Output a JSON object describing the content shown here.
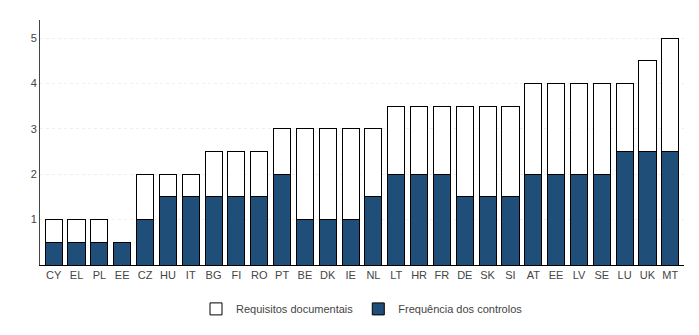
{
  "chart_data": {
    "type": "bar",
    "stacked": true,
    "categories": [
      "CY",
      "EL",
      "PL",
      "EE",
      "CZ",
      "HU",
      "IT",
      "BG",
      "FI",
      "RO",
      "PT",
      "BE",
      "DK",
      "IE",
      "NL",
      "LT",
      "HR",
      "FR",
      "DE",
      "SK",
      "SI",
      "AT",
      "EE",
      "LV",
      "SE",
      "LU",
      "UK",
      "MT"
    ],
    "series": [
      {
        "name": "Frequência dos controlos",
        "color": "#1F4E79",
        "values": [
          0.5,
          0.5,
          0.5,
          0.5,
          1.0,
          1.5,
          1.5,
          1.5,
          1.5,
          1.5,
          2.0,
          1.0,
          1.0,
          1.0,
          1.5,
          2.0,
          2.0,
          2.0,
          1.5,
          1.5,
          1.5,
          2.0,
          2.0,
          2.0,
          2.0,
          2.5,
          2.5,
          2.5
        ]
      },
      {
        "name": "Requisitos documentais",
        "color": "#FFFFFF",
        "values": [
          0.5,
          0.5,
          0.5,
          0.0,
          1.0,
          0.5,
          0.5,
          1.0,
          1.0,
          1.0,
          1.0,
          2.0,
          2.0,
          2.0,
          1.5,
          1.5,
          1.5,
          1.5,
          2.0,
          2.0,
          2.0,
          2.0,
          2.0,
          2.0,
          2.0,
          1.5,
          2.0,
          2.5
        ]
      }
    ],
    "ylim": [
      0,
      5.4
    ],
    "yticks": [
      1,
      2,
      3,
      4,
      5
    ],
    "grid": true,
    "legend": "bottom"
  }
}
